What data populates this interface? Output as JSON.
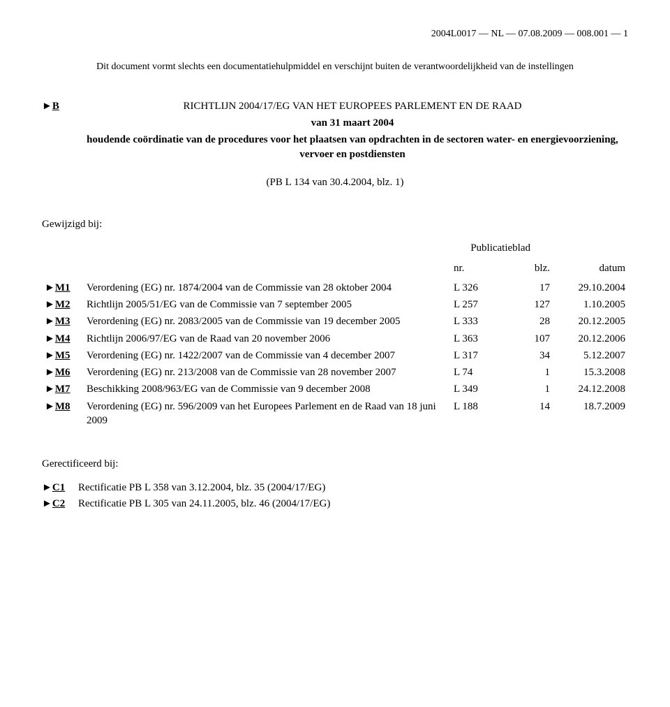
{
  "header": {
    "doc_ref": "2004L0017 — NL — 07.08.2009 — 008.001 — 1"
  },
  "disclaimer": "Dit document vormt slechts een documentatiehulpmiddel en verschijnt buiten de verantwoordelijkheid van de instellingen",
  "main": {
    "marker": "B",
    "arrow": "►",
    "title_line1": "RICHTLIJN 2004/17/EG VAN HET EUROPEES PARLEMENT EN DE RAAD",
    "title_line2": "van 31 maart 2004",
    "title_line3": "houdende coördinatie van de procedures voor het plaatsen van opdrachten in de sectoren water- en energievoorziening, vervoer en postdiensten",
    "pb_ref": "(PB L 134 van 30.4.2004, blz. 1)"
  },
  "amended": {
    "label": "Gewijzigd bij:",
    "pub_label": "Publicatieblad",
    "columns": {
      "nr": "nr.",
      "blz": "blz.",
      "datum": "datum"
    },
    "rows": [
      {
        "marker": "M1",
        "desc": "Verordening (EG) nr. 1874/2004 van de Commissie van 28 oktober 2004",
        "nr": "L 326",
        "blz": "17",
        "date": "29.10.2004"
      },
      {
        "marker": "M2",
        "desc": "Richtlijn 2005/51/EG van de Commissie van 7 september 2005",
        "nr": "L 257",
        "blz": "127",
        "date": "1.10.2005"
      },
      {
        "marker": "M3",
        "desc": "Verordening (EG) nr. 2083/2005 van de Commissie van 19 december 2005",
        "nr": "L 333",
        "blz": "28",
        "date": "20.12.2005"
      },
      {
        "marker": "M4",
        "desc": "Richtlijn 2006/97/EG van de Raad van 20 november 2006",
        "nr": "L 363",
        "blz": "107",
        "date": "20.12.2006"
      },
      {
        "marker": "M5",
        "desc": "Verordening (EG) nr. 1422/2007 van de Commissie van 4 december 2007",
        "nr": "L 317",
        "blz": "34",
        "date": "5.12.2007"
      },
      {
        "marker": "M6",
        "desc": "Verordening (EG) nr. 213/2008 van de Commissie van 28 november 2007",
        "nr": "L 74",
        "blz": "1",
        "date": "15.3.2008"
      },
      {
        "marker": "M7",
        "desc": "Beschikking 2008/963/EG van de Commissie van 9 december 2008",
        "nr": "L 349",
        "blz": "1",
        "date": "24.12.2008"
      },
      {
        "marker": "M8",
        "desc": "Verordening (EG) nr. 596/2009 van het Europees Parlement en de Raad van 18 juni 2009",
        "nr": "L 188",
        "blz": "14",
        "date": "18.7.2009"
      }
    ]
  },
  "corrected": {
    "label": "Gerectificeerd bij:",
    "rows": [
      {
        "marker": "C1",
        "desc": "Rectificatie PB L 358 van 3.12.2004, blz. 35 (2004/17/EG)"
      },
      {
        "marker": "C2",
        "desc": "Rectificatie PB L 305 van 24.11.2005, blz. 46 (2004/17/EG)"
      }
    ]
  },
  "arrow": "►"
}
